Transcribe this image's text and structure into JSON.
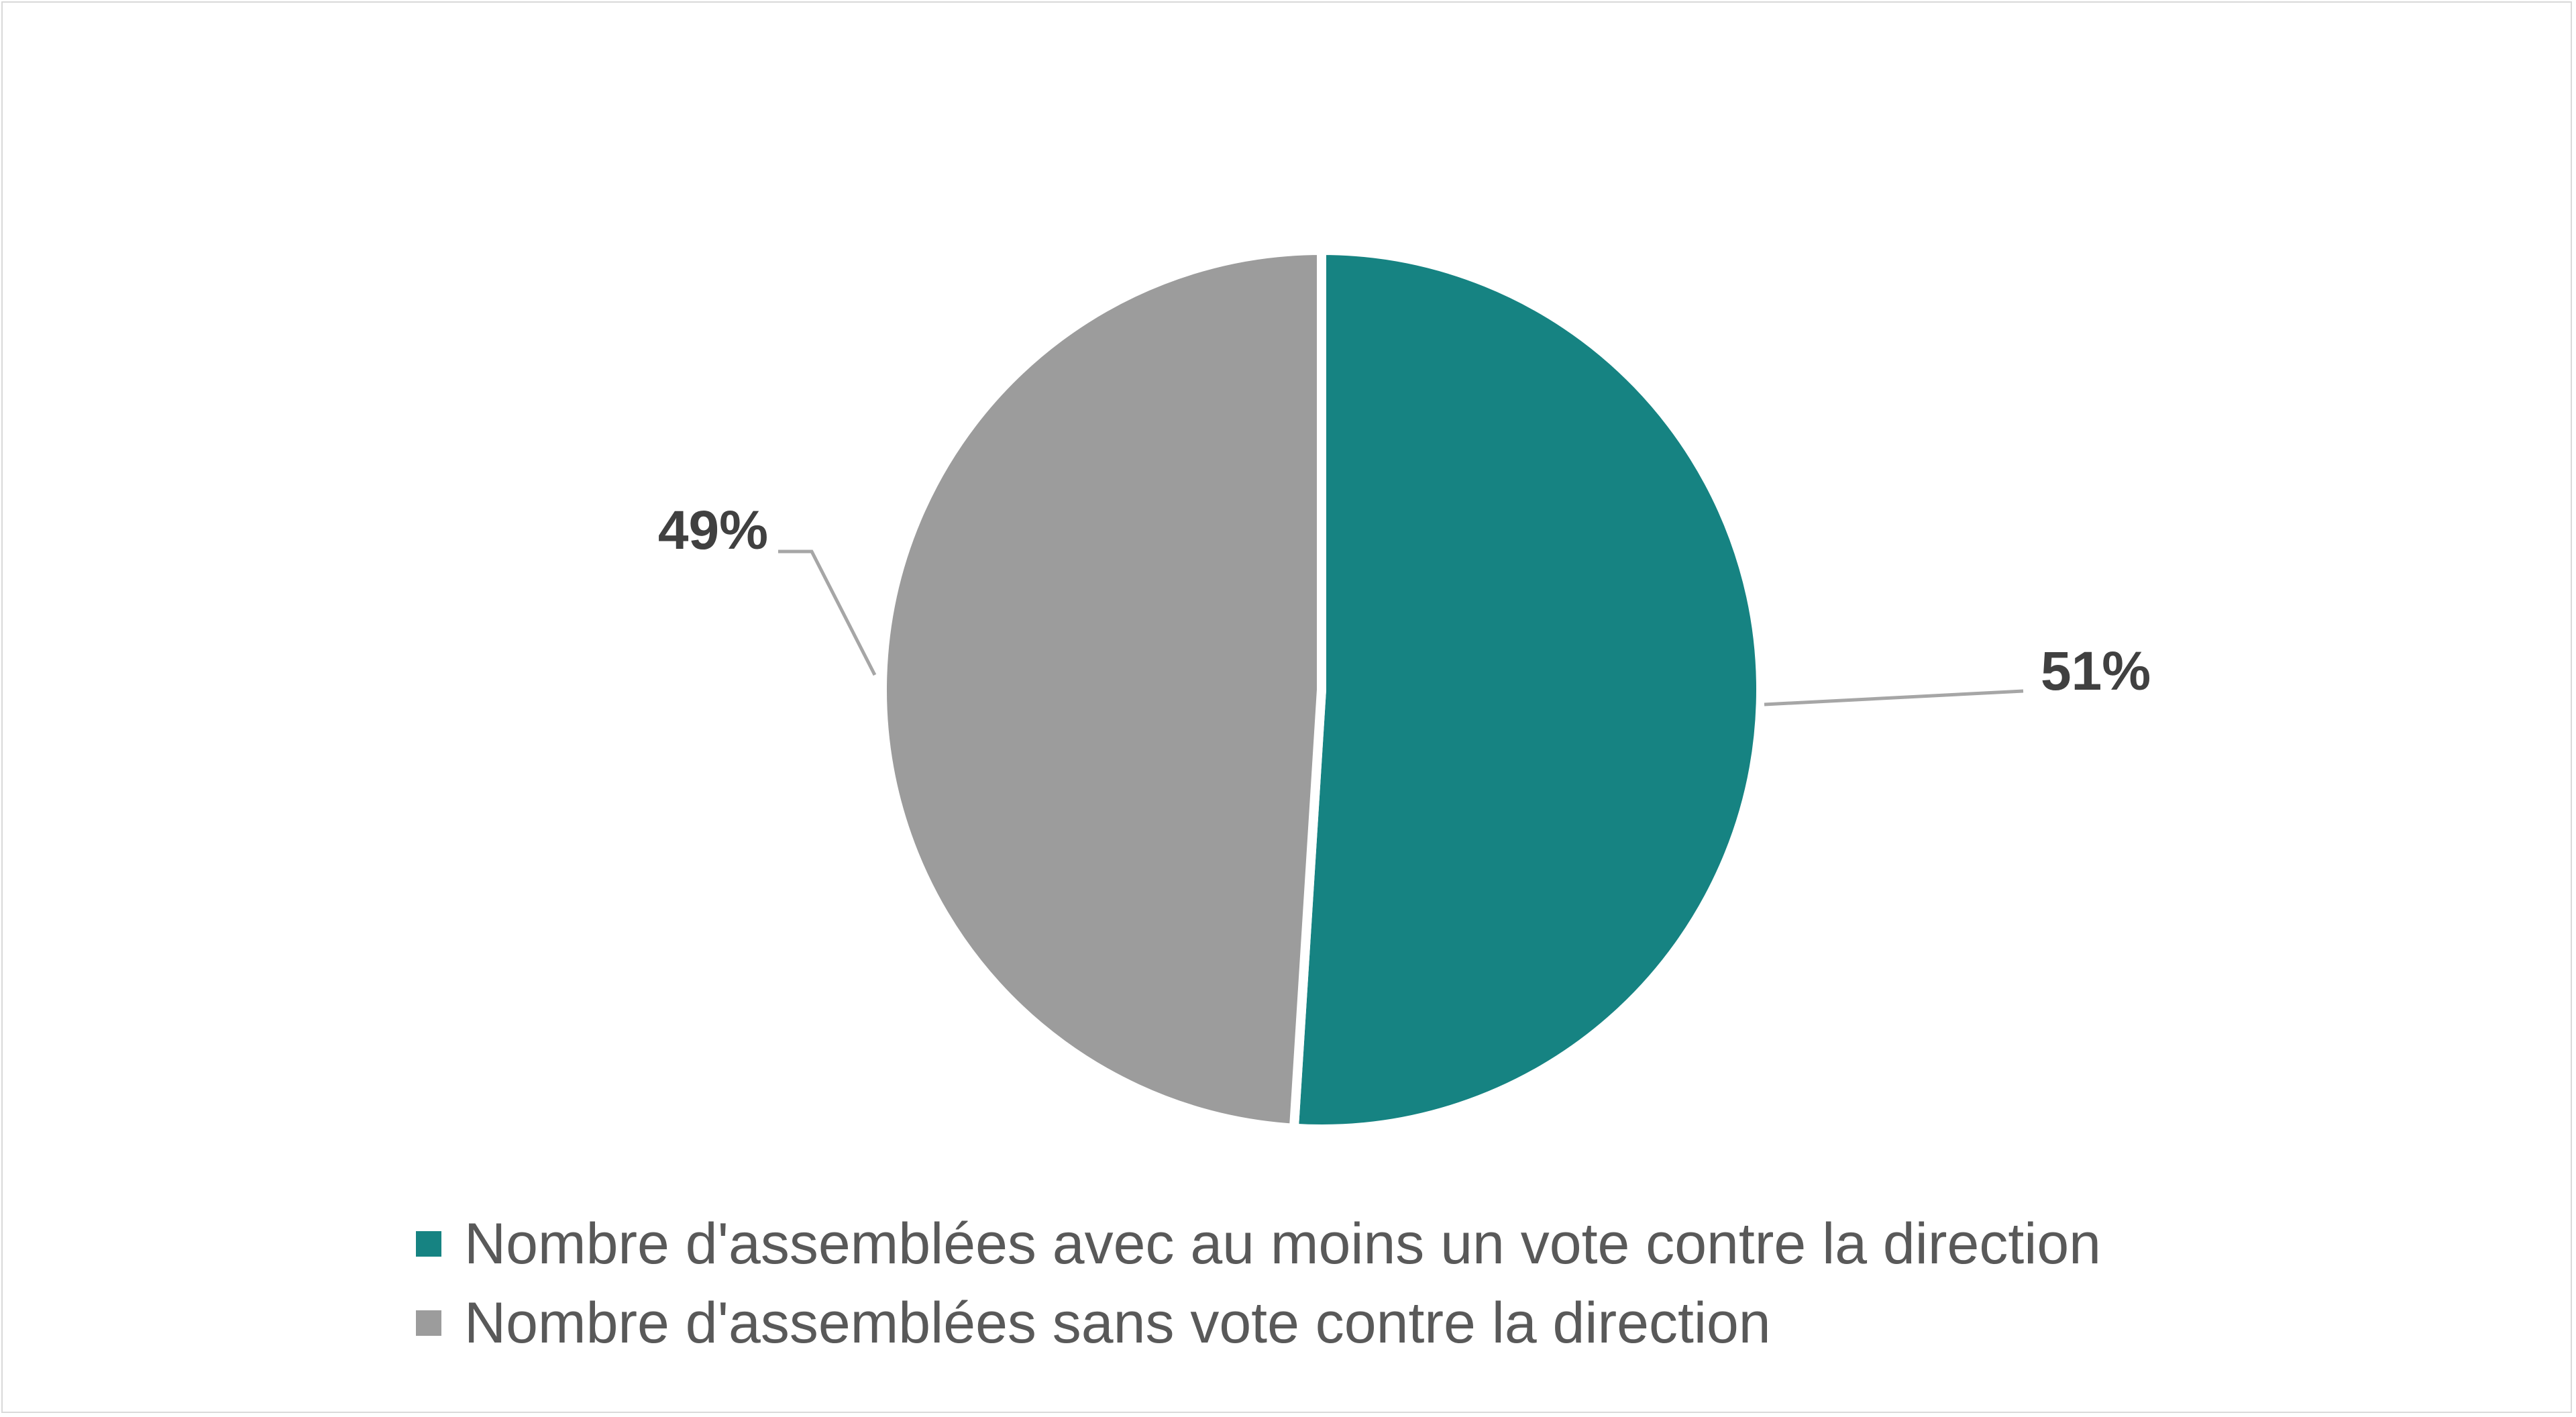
{
  "chart_data": {
    "type": "pie",
    "title": "",
    "slices": [
      {
        "name": "Nombre d'assemblées avec au moins un vote contre la direction",
        "value": 51,
        "label": "51%",
        "color": "#168382"
      },
      {
        "name": "Nombre d'assemblées sans vote contre la direction",
        "value": 49,
        "label": "49%",
        "color": "#9c9c9c"
      }
    ],
    "legend_position": "bottom",
    "label_color": "#404040",
    "leader_line_color": "#a6a6a6"
  }
}
